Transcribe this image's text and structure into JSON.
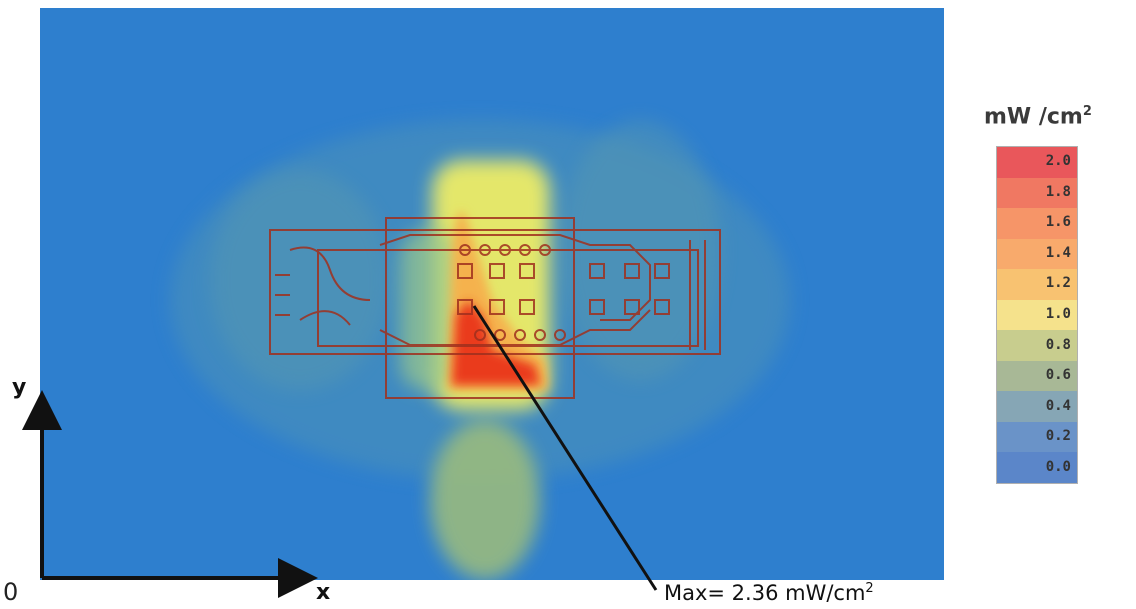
{
  "chart_data": {
    "type": "heatmap",
    "title": "",
    "colorbar": {
      "unit_label": "mW /cm",
      "unit_exponent": "2",
      "ticks": [
        "2.0",
        "1.8",
        "1.6",
        "1.4",
        "1.2",
        "1.0",
        "0.8",
        "0.6",
        "0.4",
        "0.2",
        "0.0"
      ],
      "range": [
        0.0,
        2.0
      ],
      "colors": [
        "#e9575b",
        "#f07862",
        "#f69568",
        "#f8aa6c",
        "#f8c271",
        "#f5e28c",
        "#c8cd8e",
        "#a8b896",
        "#86a6b5",
        "#6a93c8",
        "#5b86c9"
      ]
    },
    "axes": {
      "origin_label": "0",
      "xlabel": "x",
      "ylabel": "y"
    },
    "annotation": {
      "text": "Max= 2.36 mW/cm",
      "exponent": "2",
      "value": 2.36
    }
  }
}
